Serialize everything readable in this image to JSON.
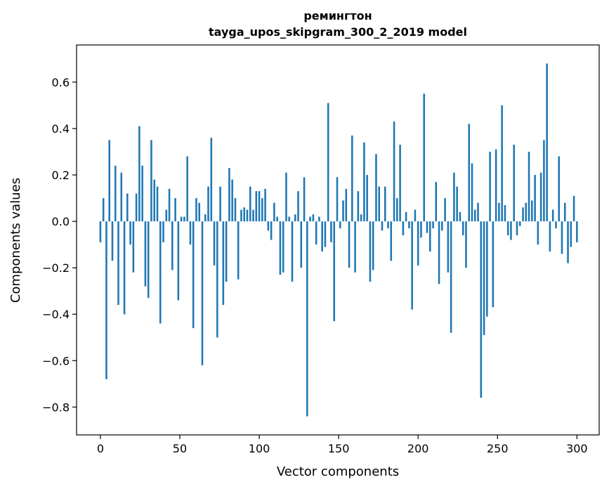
{
  "chart_data": {
    "type": "bar",
    "title": "ремингтон",
    "subtitle": "tayga_upos_skipgram_300_2_2019 model",
    "xlabel": "Vector components",
    "ylabel": "Components values",
    "xlim": [
      -15,
      314
    ],
    "ylim": [
      -0.92,
      0.76
    ],
    "xticks": [
      0,
      50,
      100,
      150,
      200,
      250,
      300
    ],
    "xtick_labels": [
      "0",
      "50",
      "100",
      "150",
      "200",
      "250",
      "300"
    ],
    "yticks": [
      -0.8,
      -0.6,
      -0.4,
      -0.2,
      0.0,
      0.2,
      0.4,
      0.6
    ],
    "ytick_labels": [
      "−0.8",
      "−0.6",
      "−0.4",
      "−0.2",
      "0.0",
      "0.2",
      "0.4",
      "0.6"
    ],
    "grid": false,
    "bar_color": "#1f77b4",
    "values": [
      -0.09,
      0.1,
      -0.68,
      0.35,
      -0.17,
      0.24,
      -0.36,
      0.21,
      -0.4,
      0.12,
      -0.1,
      -0.22,
      0.12,
      0.41,
      0.24,
      -0.28,
      -0.33,
      0.35,
      0.18,
      0.15,
      -0.44,
      -0.09,
      0.05,
      0.14,
      -0.21,
      0.1,
      -0.34,
      0.02,
      0.02,
      0.28,
      -0.1,
      -0.46,
      0.1,
      0.08,
      -0.62,
      0.03,
      0.15,
      0.36,
      -0.19,
      -0.5,
      0.15,
      -0.36,
      -0.26,
      0.23,
      0.18,
      0.1,
      -0.25,
      0.05,
      0.06,
      0.05,
      0.15,
      0.05,
      0.13,
      0.13,
      0.1,
      0.14,
      -0.04,
      -0.08,
      0.08,
      0.02,
      -0.23,
      -0.22,
      0.21,
      0.02,
      -0.26,
      0.03,
      0.13,
      -0.2,
      0.19,
      -0.84,
      0.02,
      0.03,
      -0.1,
      0.02,
      -0.13,
      -0.11,
      0.51,
      -0.09,
      -0.43,
      0.19,
      -0.03,
      0.09,
      0.14,
      -0.2,
      0.37,
      -0.22,
      0.13,
      0.03,
      0.34,
      0.2,
      -0.26,
      -0.21,
      0.29,
      0.15,
      -0.04,
      0.15,
      -0.03,
      -0.17,
      0.43,
      0.1,
      0.33,
      -0.06,
      0.04,
      -0.03,
      -0.38,
      0.05,
      -0.19,
      -0.07,
      0.55,
      -0.05,
      -0.13,
      -0.03,
      0.17,
      -0.27,
      -0.04,
      0.1,
      -0.22,
      -0.48,
      0.21,
      0.15,
      0.04,
      -0.06,
      -0.2,
      0.42,
      0.25,
      0.05,
      0.08,
      -0.76,
      -0.49,
      -0.41,
      0.3,
      -0.37,
      0.31,
      0.08,
      0.5,
      0.07,
      -0.06,
      -0.08,
      0.33,
      -0.06,
      -0.02,
      0.06,
      0.08,
      0.3,
      0.09,
      0.2,
      -0.1,
      0.21,
      0.35,
      0.68,
      -0.13,
      0.05,
      -0.03,
      0.28,
      -0.14,
      0.08,
      -0.18,
      -0.11,
      0.11,
      -0.09
    ]
  }
}
